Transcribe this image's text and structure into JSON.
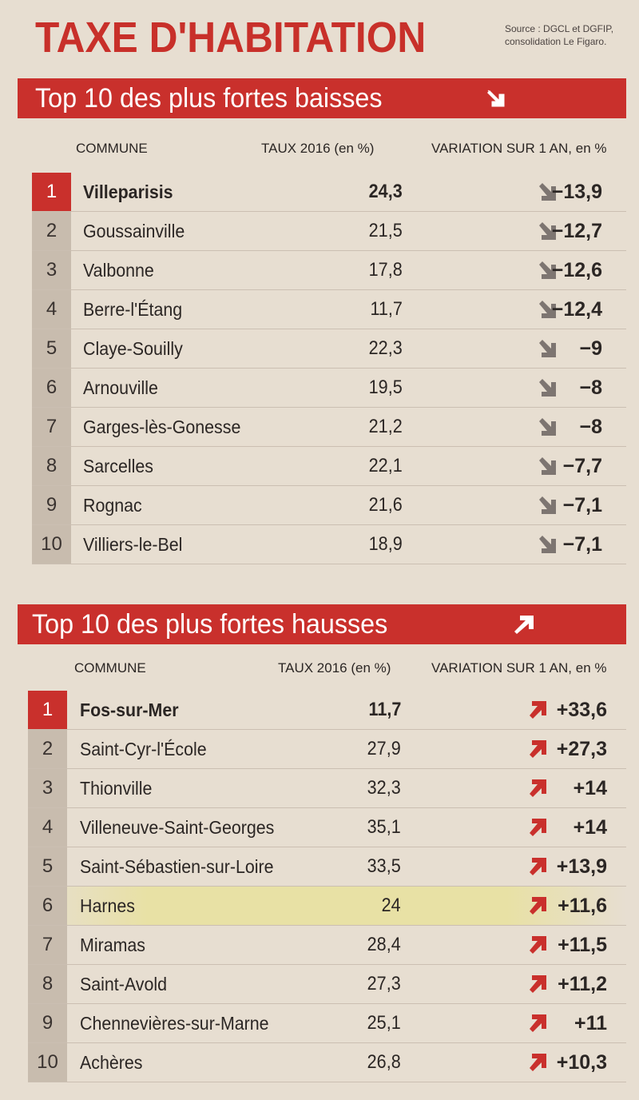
{
  "title": "TAXE D'HABITATION",
  "source_line1": "Source : DGCL et DGFIP,",
  "source_line2": "consolidation Le Figaro.",
  "colors": {
    "accent": "#c9302c",
    "rank_bg": "#c8bcae",
    "paper": "#e7ded1"
  },
  "baisses": {
    "heading": "Top 10 des plus fortes baisses",
    "heading_icon": "arrow-down-right-icon",
    "col_commune": "COMMUNE",
    "col_taux": "TAUX 2016 (en %)",
    "col_variation": "VARIATION SUR 1 AN, en %",
    "rows": [
      {
        "rank": "1",
        "commune": "Villeparisis",
        "taux": "24,3",
        "variation": "−13,9"
      },
      {
        "rank": "2",
        "commune": "Goussainville",
        "taux": "21,5",
        "variation": "−12,7"
      },
      {
        "rank": "3",
        "commune": "Valbonne",
        "taux": "17,8",
        "variation": "−12,6"
      },
      {
        "rank": "4",
        "commune": "Berre-l'Étang",
        "taux": "11,7",
        "variation": "−12,4"
      },
      {
        "rank": "5",
        "commune": "Claye-Souilly",
        "taux": "22,3",
        "variation": "−9"
      },
      {
        "rank": "6",
        "commune": "Arnouville",
        "taux": "19,5",
        "variation": "−8"
      },
      {
        "rank": "7",
        "commune": "Garges-lès-Gonesse",
        "taux": "21,2",
        "variation": "−8"
      },
      {
        "rank": "8",
        "commune": "Sarcelles",
        "taux": "22,1",
        "variation": "−7,7"
      },
      {
        "rank": "9",
        "commune": "Rognac",
        "taux": "21,6",
        "variation": "−7,1"
      },
      {
        "rank": "10",
        "commune": "Villiers-le-Bel",
        "taux": "18,9",
        "variation": "−7,1"
      }
    ]
  },
  "hausses": {
    "heading": "Top 10 des plus fortes hausses",
    "heading_icon": "arrow-up-right-icon",
    "col_commune": "COMMUNE",
    "col_taux": "TAUX 2016 (en %)",
    "col_variation": "VARIATION SUR 1 AN, en %",
    "rows": [
      {
        "rank": "1",
        "commune": "Fos-sur-Mer",
        "taux": "11,7",
        "variation": "+33,6"
      },
      {
        "rank": "2",
        "commune": "Saint-Cyr-l'École",
        "taux": "27,9",
        "variation": "+27,3"
      },
      {
        "rank": "3",
        "commune": "Thionville",
        "taux": "32,3",
        "variation": "+14"
      },
      {
        "rank": "4",
        "commune": "Villeneuve-Saint-Georges",
        "taux": "35,1",
        "variation": "+14"
      },
      {
        "rank": "5",
        "commune": "Saint-Sébastien-sur-Loire",
        "taux": "33,5",
        "variation": "+13,9"
      },
      {
        "rank": "6",
        "commune": "Harnes",
        "taux": "24",
        "variation": "+11,6"
      },
      {
        "rank": "7",
        "commune": "Miramas",
        "taux": "28,4",
        "variation": "+11,5"
      },
      {
        "rank": "8",
        "commune": "Saint-Avold",
        "taux": "27,3",
        "variation": "+11,2"
      },
      {
        "rank": "9",
        "commune": "Chennevières-sur-Marne",
        "taux": "25,1",
        "variation": "+11"
      },
      {
        "rank": "10",
        "commune": "Achères",
        "taux": "26,8",
        "variation": "+10,3"
      }
    ]
  }
}
